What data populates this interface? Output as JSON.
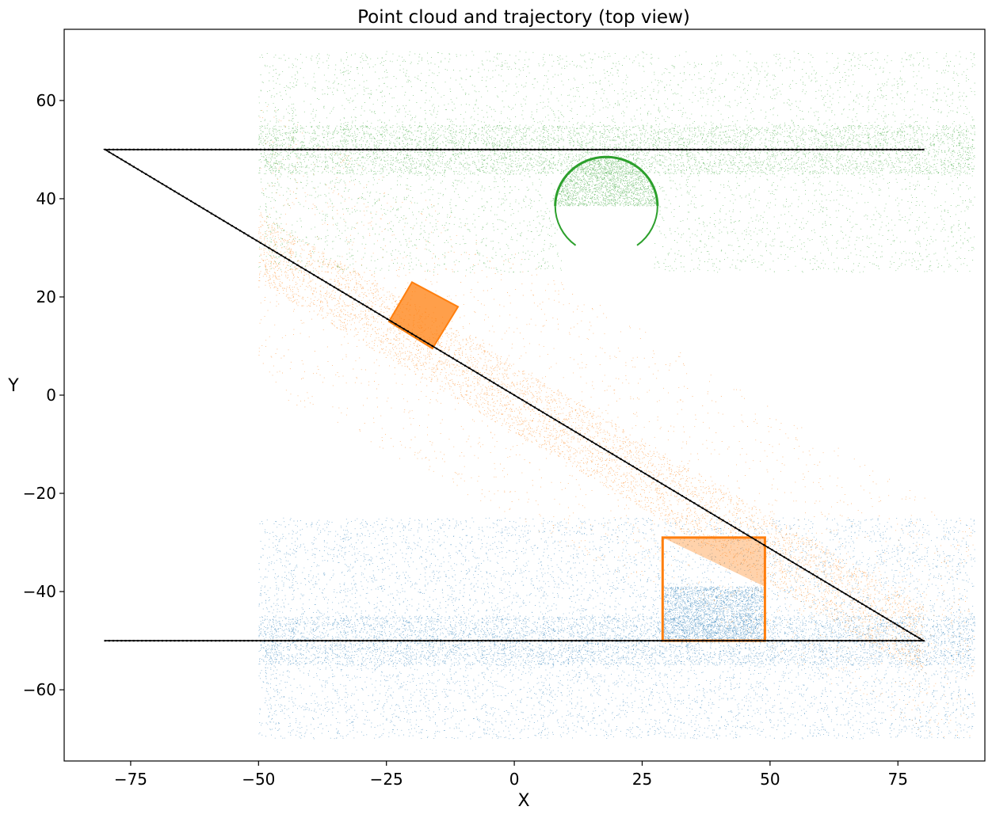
{
  "chart_data": {
    "type": "scatter",
    "title": "Point cloud and trajectory (top view)",
    "xlabel": "X",
    "ylabel": "Y",
    "xlim": [
      -88,
      92
    ],
    "ylim": [
      -74.5,
      74.5
    ],
    "xticks": [
      -75,
      -50,
      -25,
      0,
      25,
      50,
      75
    ],
    "yticks": [
      -60,
      -40,
      -20,
      0,
      20,
      40,
      60
    ],
    "xtick_labels": [
      "−75",
      "−50",
      "−25",
      "0",
      "25",
      "50",
      "75"
    ],
    "ytick_labels": [
      "−60",
      "−40",
      "−20",
      "0",
      "20",
      "40",
      "60"
    ],
    "grid": false,
    "legend": "none",
    "colors": {
      "blue": "#1f77b4",
      "orange": "#ff7f0e",
      "green": "#2ca02c",
      "trajectory": "#000000"
    },
    "series": [
      {
        "color": "#1f77b4",
        "kind": "point-cloud",
        "region": {
          "x": [
            -50,
            90
          ],
          "y": [
            -70,
            -25
          ]
        },
        "object": {
          "shape": "box-points",
          "x": [
            29,
            49
          ],
          "y": [
            -50,
            -39
          ]
        }
      },
      {
        "color": "#ff7f0e",
        "kind": "point-cloud",
        "region_polygon": [
          [
            -50,
            60
          ],
          [
            -50,
            2
          ],
          [
            82,
            -70
          ],
          [
            90,
            -70
          ],
          [
            90,
            -27
          ]
        ],
        "objects": [
          {
            "shape": "square-outline",
            "x": [
              29,
              49
            ],
            "y": [
              -50,
              -29
            ]
          },
          {
            "shape": "rotated-square",
            "corners": [
              [
                -24.5,
                15
              ],
              [
                -20,
                23
              ],
              [
                -11,
                18
              ],
              [
                -16,
                9.5
              ]
            ]
          }
        ]
      },
      {
        "color": "#2ca02c",
        "kind": "point-cloud",
        "region": {
          "x": [
            -50,
            90
          ],
          "y": [
            25,
            70
          ]
        },
        "object": {
          "shape": "circle",
          "center": [
            18,
            38.5
          ],
          "radius": 10
        }
      },
      {
        "color": "#000000",
        "kind": "trajectory",
        "points": [
          [
            80,
            50
          ],
          [
            -80,
            50
          ],
          [
            80,
            -50
          ],
          [
            -80,
            -50
          ]
        ]
      }
    ]
  }
}
